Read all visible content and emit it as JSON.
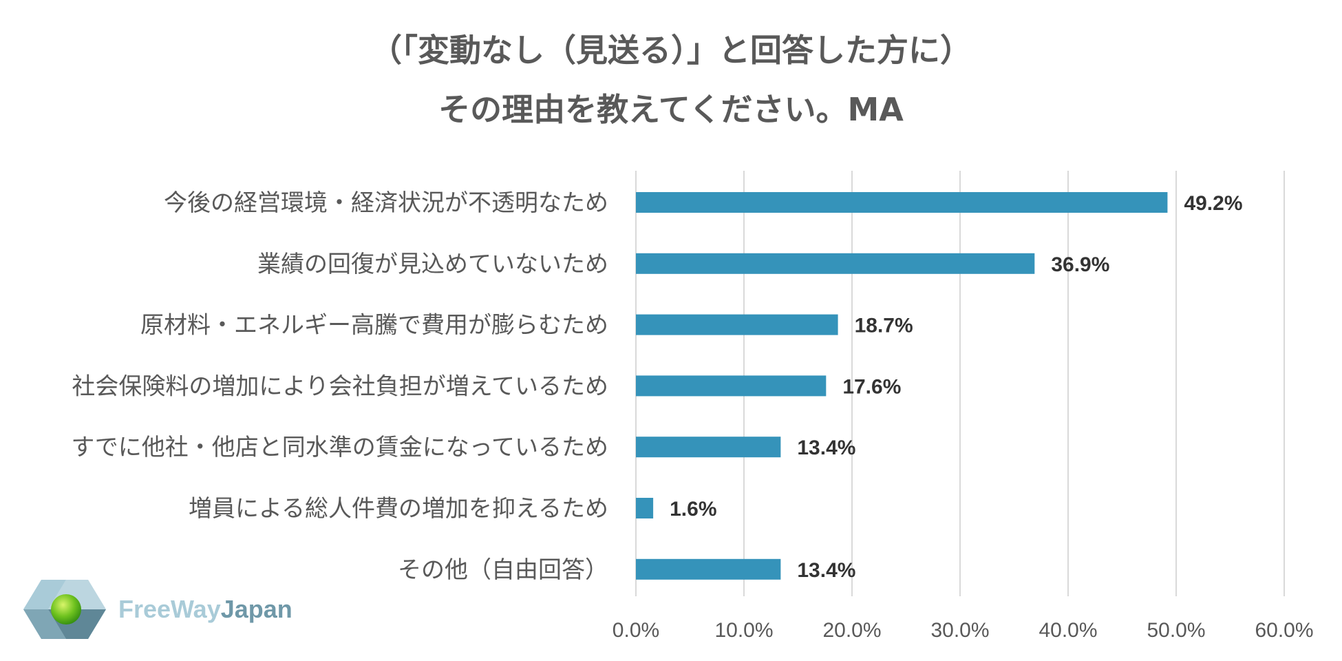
{
  "chart_data": {
    "type": "bar",
    "orientation": "horizontal",
    "title_lines": [
      "（「変動なし（見送る）」と回答した方に）",
      "その理由を教えてください。MA"
    ],
    "categories": [
      "今後の経営環境・経済状況が不透明なため",
      "業績の回復が見込めていないため",
      "原材料・エネルギー高騰で費用が膨らむため",
      "社会保険料の増加により会社負担が増えているため",
      "すでに他社・他店と同水準の賃金になっているため",
      "増員による総人件費の増加を抑えるため",
      "その他（自由回答）"
    ],
    "values": [
      49.2,
      36.9,
      18.7,
      17.6,
      13.4,
      1.6,
      13.4
    ],
    "value_labels": [
      "49.2%",
      "36.9%",
      "18.7%",
      "17.6%",
      "13.4%",
      "1.6%",
      "13.4%"
    ],
    "xlim": [
      0,
      60
    ],
    "xticks": [
      0,
      10,
      20,
      30,
      40,
      50,
      60
    ],
    "xtick_labels": [
      "0.0%",
      "10.0%",
      "20.0%",
      "30.0%",
      "40.0%",
      "50.0%",
      "60.0%"
    ],
    "grid": true,
    "bar_color": "#3593ba",
    "grid_color": "#d9d9d9"
  },
  "logo": {
    "text_part1": "FreeWay",
    "text_part2": "Japan",
    "color_part1": "#a9cbd8",
    "color_part2": "#6f98a8"
  }
}
